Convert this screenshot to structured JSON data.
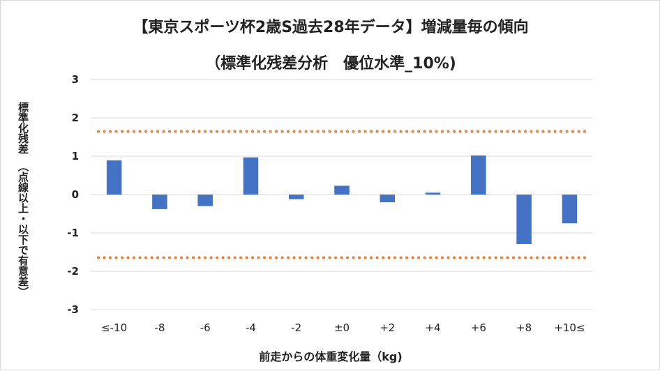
{
  "chart_data": {
    "type": "bar",
    "title": "【東京スポーツ杯2歳S過去28年データ】増減量毎の傾向",
    "subtitle": "（標準化残差分析　優位水準_10%)",
    "ylabel": "標準化残差",
    "ylabel_note": "（点線以上・以下で有意差）",
    "xlabel": "前走からの体重変化量（kg)",
    "categories": [
      "≤-10",
      "-8",
      "-6",
      "-4",
      "-2",
      "±0",
      "+2",
      "+4",
      "+6",
      "+8",
      "+10≤"
    ],
    "values": [
      0.89,
      -0.38,
      -0.3,
      0.97,
      -0.12,
      0.23,
      -0.2,
      0.05,
      1.02,
      -1.29,
      -0.75
    ],
    "ylim": [
      -3,
      3
    ],
    "yticks": [
      3,
      2,
      1,
      0,
      -1,
      -2,
      -3
    ],
    "threshold_lines": [
      1.645,
      -1.645
    ],
    "grid": true,
    "colors": {
      "bar": "#4472c4",
      "threshold": "#ed7d31",
      "grid": "#d9d9d9"
    }
  }
}
